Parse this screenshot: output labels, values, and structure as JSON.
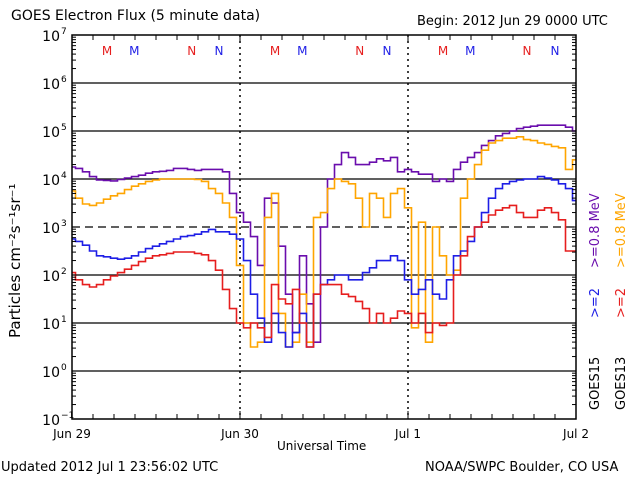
{
  "chart_data": {
    "type": "line",
    "title": "GOES Electron Flux (5 minute data)",
    "subtitle": "Begin: 2012 Jun 29 0000 UTC",
    "xlabel": "Universal Time",
    "ylabel": "Particles cm⁻²s⁻¹sr⁻¹",
    "y_scale": "log",
    "ylim": [
      0.1,
      10000000
    ],
    "y_ticks": [
      {
        "exp": 7,
        "label": "10",
        "sup": "7"
      },
      {
        "exp": 6,
        "label": "10",
        "sup": "6"
      },
      {
        "exp": 5,
        "label": "10",
        "sup": "5"
      },
      {
        "exp": 4,
        "label": "10",
        "sup": "4"
      },
      {
        "exp": 3,
        "label": "10",
        "sup": "3"
      },
      {
        "exp": 2,
        "label": "10",
        "sup": "2"
      },
      {
        "exp": 1,
        "label": "10",
        "sup": "1"
      },
      {
        "exp": 0,
        "label": "10",
        "sup": "0"
      },
      {
        "exp": -1,
        "label": "10",
        "sup": "−1"
      }
    ],
    "xlim_hours": [
      0,
      72
    ],
    "x_ticks": [
      {
        "hour": 0,
        "label": "Jun 29"
      },
      {
        "hour": 24,
        "label": "Jun 30"
      },
      {
        "hour": 48,
        "label": "Jul 1"
      },
      {
        "hour": 72,
        "label": "Jul 2"
      }
    ],
    "grid": "solid lines at each decade; dashed line at 10^3 (alert threshold); dashed vertical lines at day boundaries",
    "threshold": 1000,
    "markers": [
      {
        "hour": 5.0,
        "label": "M",
        "satellite": "GOES13"
      },
      {
        "hour": 8.9,
        "label": "M",
        "satellite": "GOES15"
      },
      {
        "hour": 17.1,
        "label": "N",
        "satellite": "GOES13"
      },
      {
        "hour": 21.0,
        "label": "N",
        "satellite": "GOES15"
      },
      {
        "hour": 29.0,
        "label": "M",
        "satellite": "GOES13"
      },
      {
        "hour": 32.9,
        "label": "M",
        "satellite": "GOES15"
      },
      {
        "hour": 41.1,
        "label": "N",
        "satellite": "GOES13"
      },
      {
        "hour": 45.0,
        "label": "N",
        "satellite": "GOES15"
      },
      {
        "hour": 53.0,
        "label": "M",
        "satellite": "GOES13"
      },
      {
        "hour": 56.9,
        "label": "M",
        "satellite": "GOES15"
      },
      {
        "hour": 65.0,
        "label": "N",
        "satellite": "GOES13"
      },
      {
        "hour": 69.0,
        "label": "N",
        "satellite": "GOES15"
      }
    ],
    "legend": {
      "placement": "right-vertical",
      "groups": [
        {
          "satellite": "GOES15",
          "entries": [
            {
              "label": ">=2",
              "color": "#1e1ee6"
            },
            {
              "label": ">=0.8 MeV",
              "color": "#6a0dad"
            }
          ]
        },
        {
          "satellite": "GOES13",
          "entries": [
            {
              "label": ">=2",
              "color": "#e61e1e"
            },
            {
              "label": ">=0.8 MeV",
              "color": "#ffa500"
            }
          ]
        }
      ]
    },
    "x_hours": [
      0,
      1,
      2,
      3,
      4,
      5,
      6,
      7,
      8,
      9,
      10,
      11,
      12,
      13,
      14,
      15,
      16,
      17,
      18,
      19,
      20,
      21,
      22,
      23,
      24,
      25,
      26,
      27,
      28,
      29,
      30,
      31,
      32,
      33,
      34,
      35,
      36,
      37,
      38,
      39,
      40,
      41,
      42,
      43,
      44,
      45,
      46,
      47,
      48,
      49,
      50,
      51,
      52,
      53,
      54,
      55,
      56,
      57,
      58,
      59,
      60,
      61,
      62,
      63,
      64,
      65,
      66,
      67,
      68,
      69,
      70,
      71,
      72
    ],
    "series": [
      {
        "name": "GOES15 >=0.8 MeV",
        "color": "#6a0dad",
        "log10_values": [
          4.25,
          4.22,
          4.15,
          4.05,
          3.98,
          3.97,
          3.96,
          3.99,
          4.02,
          4.05,
          4.08,
          4.12,
          4.15,
          4.16,
          4.18,
          4.22,
          4.22,
          4.2,
          4.18,
          4.2,
          4.2,
          4.2,
          4.15,
          3.7,
          3.3,
          3.1,
          2.8,
          2.2,
          3.6,
          3.5,
          2.6,
          1.6,
          0.8,
          2.4,
          1.4,
          0.6,
          3.0,
          4.0,
          4.3,
          4.55,
          4.45,
          4.3,
          4.3,
          4.35,
          4.42,
          4.38,
          4.45,
          4.15,
          4.2,
          4.15,
          4.1,
          4.1,
          3.95,
          4.0,
          3.95,
          4.2,
          4.35,
          4.45,
          4.55,
          4.7,
          4.8,
          4.9,
          4.95,
          5.0,
          5.05,
          5.08,
          5.1,
          5.12,
          5.12,
          5.12,
          5.12,
          5.08,
          5.0
        ]
      },
      {
        "name": "GOES13 >=0.8 MeV",
        "color": "#ffa500",
        "log10_values": [
          3.75,
          3.6,
          3.48,
          3.45,
          3.5,
          3.58,
          3.65,
          3.7,
          3.78,
          3.85,
          3.9,
          3.95,
          3.98,
          4.0,
          4.0,
          4.0,
          4.0,
          4.0,
          3.99,
          3.95,
          3.8,
          3.7,
          3.5,
          3.2,
          2.2,
          1.0,
          0.5,
          0.6,
          3.2,
          3.7,
          1.2,
          0.5,
          0.6,
          1.6,
          0.6,
          3.2,
          3.3,
          3.8,
          4.0,
          3.95,
          3.9,
          3.6,
          3.0,
          3.7,
          3.6,
          3.2,
          3.7,
          3.8,
          3.4,
          0.9,
          3.1,
          0.6,
          3.0,
          2.4,
          2.0,
          2.1,
          3.6,
          4.0,
          4.3,
          4.6,
          4.75,
          4.8,
          4.85,
          4.85,
          4.88,
          4.82,
          4.8,
          4.75,
          4.72,
          4.68,
          4.65,
          4.2,
          4.4
        ]
      },
      {
        "name": "GOES15 >=2 MeV",
        "color": "#1e1ee6",
        "log10_values": [
          2.75,
          2.7,
          2.62,
          2.5,
          2.4,
          2.38,
          2.35,
          2.33,
          2.35,
          2.4,
          2.48,
          2.55,
          2.6,
          2.65,
          2.7,
          2.75,
          2.8,
          2.82,
          2.85,
          2.9,
          2.95,
          2.9,
          2.9,
          2.85,
          2.75,
          2.3,
          1.6,
          1.1,
          0.6,
          1.2,
          0.8,
          0.5,
          0.8,
          1.2,
          0.5,
          1.6,
          1.8,
          1.9,
          2.0,
          2.0,
          1.9,
          1.9,
          2.05,
          2.15,
          2.3,
          2.3,
          2.4,
          2.3,
          1.9,
          1.6,
          1.7,
          1.9,
          1.6,
          1.5,
          1.9,
          2.4,
          2.5,
          2.7,
          3.0,
          3.3,
          3.6,
          3.8,
          3.9,
          3.95,
          3.98,
          4.0,
          4.0,
          4.05,
          4.02,
          3.98,
          3.9,
          3.8,
          3.55
        ]
      },
      {
        "name": "GOES13 >=2 MeV",
        "color": "#e61e1e",
        "log10_values": [
          2.05,
          1.9,
          1.8,
          1.75,
          1.8,
          1.9,
          1.98,
          2.05,
          2.12,
          2.2,
          2.28,
          2.35,
          2.4,
          2.42,
          2.45,
          2.48,
          2.48,
          2.48,
          2.45,
          2.42,
          2.3,
          2.1,
          1.7,
          1.3,
          1.0,
          0.9,
          1.0,
          0.9,
          0.7,
          1.8,
          1.5,
          1.4,
          1.7,
          1.0,
          0.5,
          1.6,
          1.8,
          1.8,
          1.8,
          1.6,
          1.55,
          1.45,
          1.3,
          1.0,
          1.2,
          1.0,
          1.1,
          1.25,
          1.2,
          1.0,
          1.2,
          0.8,
          1.0,
          0.95,
          1.0,
          2.0,
          2.4,
          2.8,
          3.0,
          3.1,
          3.25,
          3.35,
          3.4,
          3.45,
          3.3,
          3.2,
          3.2,
          3.35,
          3.4,
          3.3,
          3.15,
          2.5,
          2.5
        ]
      }
    ]
  },
  "footer": {
    "updated": "Updated 2012 Jul  1 23:56:02 UTC",
    "source": "NOAA/SWPC Boulder, CO USA"
  }
}
